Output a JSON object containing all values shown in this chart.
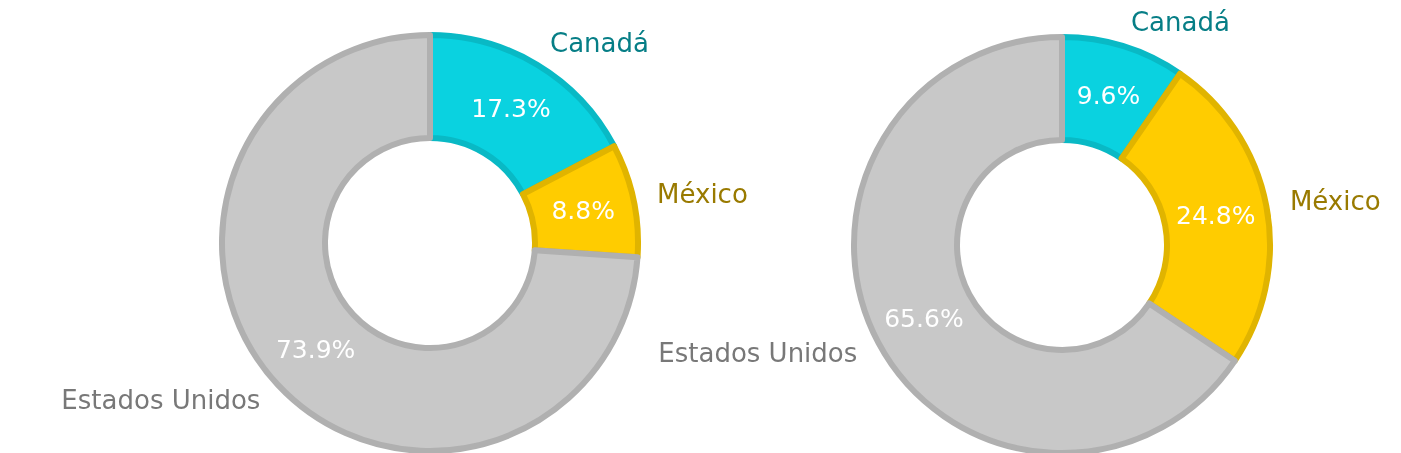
{
  "chart_data": [
    {
      "type": "donut",
      "categories": [
        "Canadá",
        "México",
        "Estados Unidos"
      ],
      "values": [
        17.3,
        8.8,
        73.9
      ],
      "value_labels": [
        "17.3%",
        "8.8%",
        "73.9%"
      ],
      "colors": [
        "#0ad2e0",
        "#ffcc00",
        "#c8c8c8"
      ]
    },
    {
      "type": "donut",
      "categories": [
        "Canadá",
        "México",
        "Estados Unidos"
      ],
      "values": [
        9.6,
        24.8,
        65.6
      ],
      "value_labels": [
        "9.6%",
        "24.8%",
        "65.6%"
      ],
      "colors": [
        "#0ad2e0",
        "#ffcc00",
        "#c8c8c8"
      ]
    }
  ]
}
